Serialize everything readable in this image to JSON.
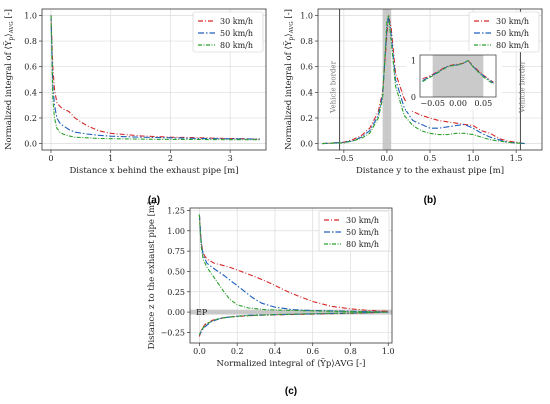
{
  "colors": {
    "s30": "#d62728",
    "s50": "#1f5fbf",
    "s80": "#2ca02c",
    "grid": "#dcdcdc",
    "shade": "#bdbdbd"
  },
  "chart_data": [
    {
      "panel": "(a)",
      "type": "line",
      "xlabel": "Distance x behind the exhaust pipe [m]",
      "ylabel": "Normalized integral of ⟨Ỹp⟩AVG [-]",
      "xlim": [
        -0.15,
        3.6
      ],
      "ylim": [
        -0.05,
        1.05
      ],
      "xticks": [
        0,
        1,
        2,
        3
      ],
      "xtick_labels": [
        "0",
        "1",
        "2",
        "3"
      ],
      "yticks": [
        0.0,
        0.2,
        0.4,
        0.6,
        0.8,
        1.0
      ],
      "ytick_labels": [
        "0.0",
        "0.2",
        "0.4",
        "0.6",
        "0.8",
        "1.0"
      ],
      "grid": true,
      "legend_position": "top-right",
      "series": [
        {
          "name": "30 km/h",
          "color": "#d62728",
          "x": [
            0.0,
            0.03,
            0.06,
            0.1,
            0.15,
            0.2,
            0.3,
            0.4,
            0.6,
            0.8,
            1.0,
            1.5,
            2.0,
            2.5,
            3.0,
            3.5
          ],
          "y": [
            1.0,
            0.6,
            0.42,
            0.32,
            0.29,
            0.27,
            0.25,
            0.2,
            0.14,
            0.1,
            0.08,
            0.06,
            0.05,
            0.045,
            0.04,
            0.035
          ]
        },
        {
          "name": "50 km/h",
          "color": "#1f5fbf",
          "x": [
            0.0,
            0.03,
            0.06,
            0.1,
            0.15,
            0.2,
            0.3,
            0.4,
            0.6,
            0.8,
            1.0,
            1.5,
            2.0,
            2.5,
            3.0,
            3.5
          ],
          "y": [
            1.0,
            0.45,
            0.3,
            0.2,
            0.16,
            0.14,
            0.11,
            0.09,
            0.075,
            0.065,
            0.058,
            0.05,
            0.045,
            0.04,
            0.037,
            0.035
          ]
        },
        {
          "name": "80 km/h",
          "color": "#2ca02c",
          "x": [
            0.0,
            0.03,
            0.06,
            0.1,
            0.15,
            0.2,
            0.3,
            0.4,
            0.6,
            0.8,
            1.0,
            1.5,
            2.0,
            2.5,
            3.0,
            3.5
          ],
          "y": [
            1.0,
            0.35,
            0.2,
            0.12,
            0.09,
            0.075,
            0.06,
            0.05,
            0.045,
            0.04,
            0.038,
            0.035,
            0.033,
            0.032,
            0.03,
            0.03
          ]
        }
      ]
    },
    {
      "panel": "(b)",
      "type": "line",
      "xlabel": "Distance y to the exhaust pipe [m]",
      "ylabel": "Normalized integral of ⟨Ỹp⟩AVG [-]",
      "xlim": [
        -0.8,
        1.8
      ],
      "ylim": [
        -0.05,
        1.05
      ],
      "xticks": [
        -0.5,
        0.0,
        0.5,
        1.0,
        1.5
      ],
      "xtick_labels": [
        "−0.5",
        "0.0",
        "0.5",
        "1.0",
        "1.5"
      ],
      "yticks": [
        0.0,
        0.2,
        0.4,
        0.6,
        0.8,
        1.0
      ],
      "ytick_labels": [
        "0.0",
        "0.2",
        "0.4",
        "0.6",
        "0.8",
        "1.0"
      ],
      "grid": true,
      "legend_position": "top-right",
      "vehicle_border_label": "Vehicle border",
      "vehicle_border_x": [
        -0.55,
        1.55
      ],
      "shaded_x": [
        -0.05,
        0.05
      ],
      "series": [
        {
          "name": "30 km/h",
          "color": "#d62728",
          "x": [
            -0.75,
            -0.5,
            -0.4,
            -0.3,
            -0.2,
            -0.1,
            -0.05,
            0.0,
            0.02,
            0.05,
            0.1,
            0.2,
            0.3,
            0.4,
            0.5,
            0.6,
            0.7,
            0.8,
            0.9,
            1.0,
            1.1,
            1.2,
            1.3,
            1.4,
            1.6
          ],
          "y": [
            0.0,
            0.01,
            0.03,
            0.06,
            0.12,
            0.25,
            0.4,
            0.85,
            1.0,
            0.9,
            0.55,
            0.35,
            0.25,
            0.22,
            0.2,
            0.18,
            0.17,
            0.16,
            0.15,
            0.14,
            0.1,
            0.08,
            0.04,
            0.02,
            0.0
          ]
        },
        {
          "name": "50 km/h",
          "color": "#1f5fbf",
          "x": [
            -0.75,
            -0.5,
            -0.4,
            -0.3,
            -0.2,
            -0.1,
            -0.05,
            0.0,
            0.02,
            0.05,
            0.1,
            0.2,
            0.3,
            0.4,
            0.5,
            0.6,
            0.7,
            0.8,
            0.9,
            1.0,
            1.1,
            1.2,
            1.3,
            1.4,
            1.6
          ],
          "y": [
            0.0,
            0.01,
            0.02,
            0.05,
            0.1,
            0.22,
            0.38,
            0.9,
            1.0,
            0.85,
            0.5,
            0.28,
            0.18,
            0.15,
            0.12,
            0.12,
            0.13,
            0.14,
            0.15,
            0.12,
            0.08,
            0.05,
            0.03,
            0.01,
            0.0
          ]
        },
        {
          "name": "80 km/h",
          "color": "#2ca02c",
          "x": [
            -0.75,
            -0.5,
            -0.4,
            -0.3,
            -0.2,
            -0.1,
            -0.05,
            0.0,
            0.02,
            0.05,
            0.1,
            0.2,
            0.3,
            0.4,
            0.5,
            0.6,
            0.7,
            0.8,
            0.9,
            1.0,
            1.1,
            1.2,
            1.3,
            1.4,
            1.6
          ],
          "y": [
            0.0,
            0.005,
            0.02,
            0.04,
            0.08,
            0.2,
            0.35,
            0.95,
            1.0,
            0.8,
            0.45,
            0.22,
            0.14,
            0.1,
            0.08,
            0.07,
            0.07,
            0.08,
            0.08,
            0.07,
            0.05,
            0.03,
            0.02,
            0.01,
            0.0
          ]
        }
      ],
      "inset": {
        "xlim": [
          -0.075,
          0.075
        ],
        "ylim": [
          0.0,
          1.15
        ],
        "xticks": [
          -0.05,
          0.0,
          0.05
        ],
        "xtick_labels": [
          "−0.05",
          "0.00",
          "0.05"
        ],
        "yticks": [
          0,
          1
        ],
        "ytick_labels": [
          "0",
          "1"
        ],
        "shaded_x": [
          -0.05,
          0.05
        ],
        "series": [
          {
            "name": "30 km/h",
            "color": "#d62728",
            "x": [
              -0.07,
              -0.06,
              -0.05,
              -0.04,
              -0.03,
              -0.02,
              -0.01,
              0.0,
              0.01,
              0.02,
              0.03,
              0.04,
              0.05,
              0.06,
              0.07
            ],
            "y": [
              0.5,
              0.55,
              0.62,
              0.7,
              0.78,
              0.85,
              0.88,
              0.9,
              0.92,
              1.0,
              0.85,
              0.72,
              0.6,
              0.5,
              0.4
            ]
          },
          {
            "name": "50 km/h",
            "color": "#1f5fbf",
            "x": [
              -0.07,
              -0.06,
              -0.05,
              -0.04,
              -0.03,
              -0.02,
              -0.01,
              0.0,
              0.01,
              0.02,
              0.03,
              0.04,
              0.05,
              0.06,
              0.07
            ],
            "y": [
              0.45,
              0.52,
              0.6,
              0.68,
              0.76,
              0.84,
              0.87,
              0.88,
              0.92,
              1.0,
              0.83,
              0.7,
              0.58,
              0.48,
              0.38
            ]
          },
          {
            "name": "80 km/h",
            "color": "#2ca02c",
            "x": [
              -0.07,
              -0.06,
              -0.05,
              -0.04,
              -0.03,
              -0.02,
              -0.01,
              0.0,
              0.01,
              0.02,
              0.03,
              0.04,
              0.05,
              0.06,
              0.07
            ],
            "y": [
              0.42,
              0.5,
              0.58,
              0.66,
              0.75,
              0.83,
              0.86,
              0.87,
              0.93,
              1.0,
              0.82,
              0.68,
              0.55,
              0.45,
              0.35
            ]
          }
        ]
      }
    },
    {
      "panel": "(c)",
      "type": "line",
      "xlabel": "Normalized integral of ⟨Ỹp⟩AVG [-]",
      "ylabel": "Distance z to the exhaust pipe [m]",
      "xlim": [
        -0.05,
        1.02
      ],
      "ylim": [
        -0.38,
        1.28
      ],
      "xticks": [
        0.0,
        0.2,
        0.4,
        0.6,
        0.8,
        1.0
      ],
      "xtick_labels": [
        "0.0",
        "0.2",
        "0.4",
        "0.6",
        "0.8",
        "1.0"
      ],
      "yticks": [
        -0.25,
        0.0,
        0.25,
        0.5,
        0.75,
        1.0,
        1.25
      ],
      "ytick_labels": [
        "−0.25",
        "0.00",
        "0.25",
        "0.50",
        "0.75",
        "1.00",
        "1.25"
      ],
      "grid": true,
      "legend_position": "top-right",
      "ep_label": "EP",
      "shaded_y": [
        -0.03,
        0.03
      ],
      "series": [
        {
          "name": "30 km/h",
          "color": "#d62728",
          "x": [
            0.0,
            0.005,
            0.01,
            0.02,
            0.04,
            0.08,
            0.15,
            0.22,
            0.3,
            0.38,
            0.45,
            0.52,
            0.6,
            0.7,
            0.8,
            0.9,
            1.0,
            0.9,
            0.7,
            0.5,
            0.3,
            0.15,
            0.07,
            0.03,
            0.01,
            0.0
          ],
          "y": [
            1.2,
            1.0,
            0.85,
            0.72,
            0.65,
            0.6,
            0.56,
            0.5,
            0.43,
            0.35,
            0.27,
            0.2,
            0.13,
            0.07,
            0.04,
            0.02,
            0.01,
            -0.01,
            -0.02,
            -0.03,
            -0.04,
            -0.06,
            -0.1,
            -0.15,
            -0.22,
            -0.3
          ]
        },
        {
          "name": "50 km/h",
          "color": "#1f5fbf",
          "x": [
            0.0,
            0.005,
            0.01,
            0.02,
            0.04,
            0.08,
            0.13,
            0.18,
            0.23,
            0.28,
            0.33,
            0.4,
            0.5,
            0.6,
            0.8,
            1.0,
            0.85,
            0.65,
            0.45,
            0.25,
            0.12,
            0.06,
            0.02,
            0.0
          ],
          "y": [
            1.2,
            1.0,
            0.85,
            0.7,
            0.6,
            0.53,
            0.45,
            0.36,
            0.27,
            0.18,
            0.11,
            0.06,
            0.03,
            0.02,
            0.01,
            0.0,
            -0.01,
            -0.02,
            -0.03,
            -0.04,
            -0.07,
            -0.12,
            -0.2,
            -0.28
          ]
        },
        {
          "name": "80 km/h",
          "color": "#2ca02c",
          "x": [
            0.0,
            0.005,
            0.01,
            0.02,
            0.04,
            0.07,
            0.1,
            0.13,
            0.16,
            0.2,
            0.26,
            0.35,
            0.5,
            0.7,
            1.0,
            0.8,
            0.6,
            0.4,
            0.2,
            0.1,
            0.04,
            0.01,
            0.0
          ],
          "y": [
            1.2,
            0.95,
            0.8,
            0.65,
            0.55,
            0.45,
            0.35,
            0.25,
            0.16,
            0.09,
            0.05,
            0.03,
            0.02,
            0.01,
            0.0,
            -0.01,
            -0.02,
            -0.03,
            -0.05,
            -0.08,
            -0.14,
            -0.22,
            -0.28
          ]
        }
      ]
    }
  ]
}
